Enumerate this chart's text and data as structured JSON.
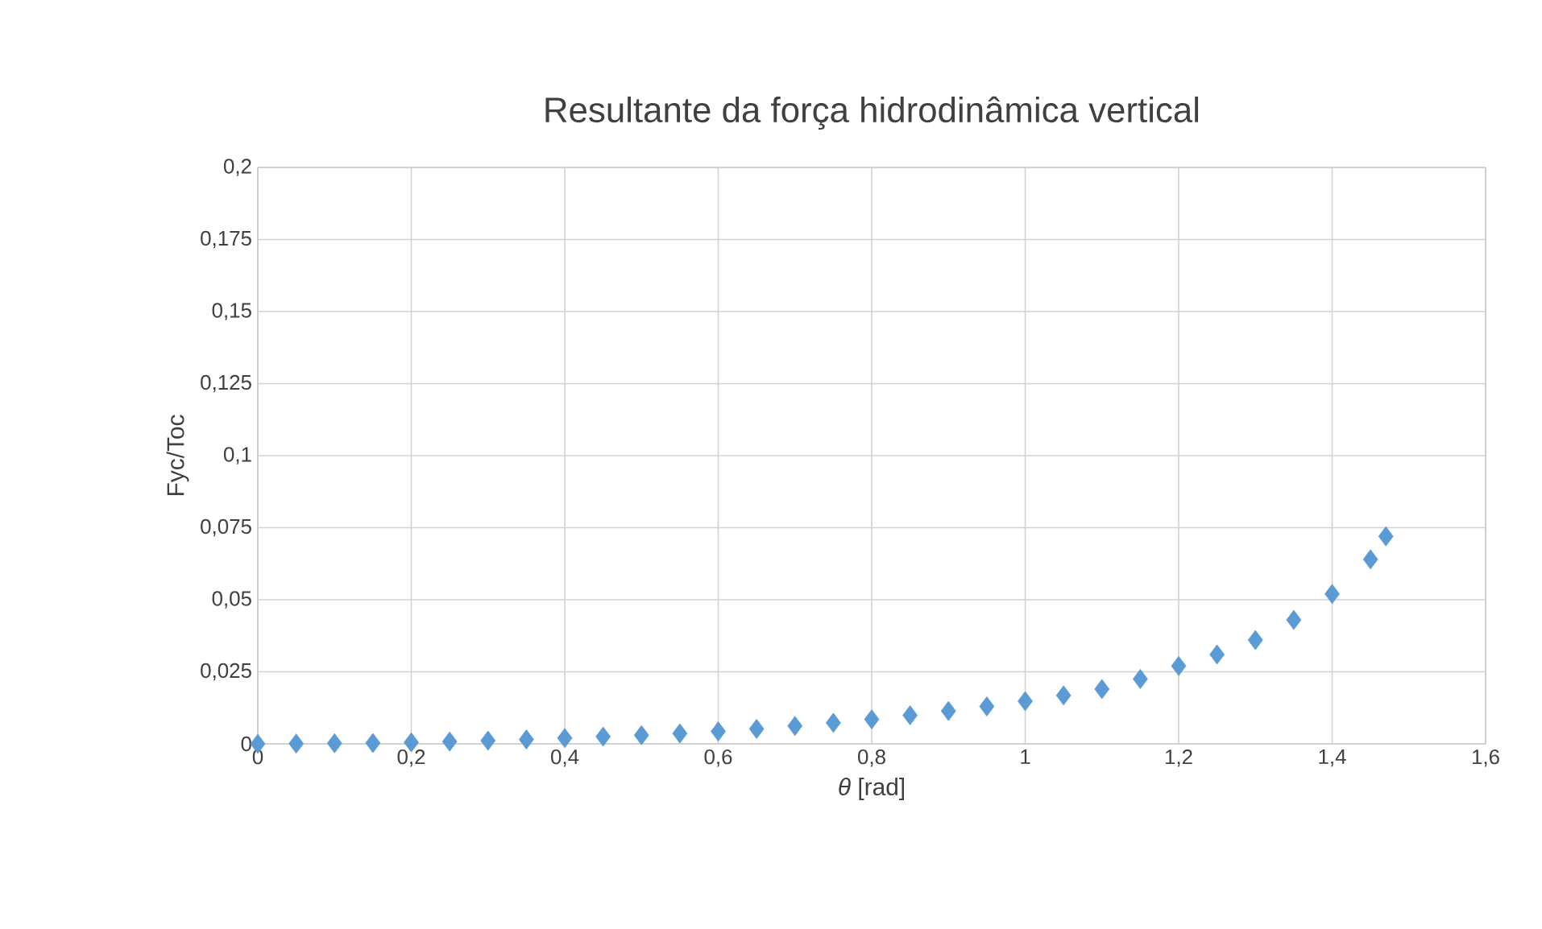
{
  "chart_data": {
    "type": "scatter",
    "title": "Resultante da força hidrodinâmica vertical",
    "xlabel": "*θ* [rad]",
    "ylabel": "Fyc/Toc",
    "x": [
      0,
      0.05,
      0.1,
      0.15,
      0.2,
      0.25,
      0.3,
      0.35,
      0.4,
      0.45,
      0.5,
      0.55,
      0.6,
      0.65,
      0.7,
      0.75,
      0.8,
      0.85,
      0.9,
      0.95,
      1.0,
      1.05,
      1.1,
      1.15,
      1.2,
      1.25,
      1.3,
      1.35,
      1.4,
      1.45,
      1.47
    ],
    "series": [
      {
        "color": "#5b9bd5",
        "values": [
          0,
          0.0001,
          0.0002,
          0.0003,
          0.0005,
          0.0008,
          0.0011,
          0.0015,
          0.002,
          0.0025,
          0.003,
          0.0036,
          0.0043,
          0.0052,
          0.0062,
          0.0073,
          0.0085,
          0.0099,
          0.0114,
          0.013,
          0.0148,
          0.0168,
          0.019,
          0.0225,
          0.027,
          0.031,
          0.036,
          0.043,
          0.052,
          0.064,
          0.072
        ]
      }
    ],
    "xlim": [
      0,
      1.6
    ],
    "ylim": [
      0,
      0.2
    ],
    "xticks": [
      0,
      {
        "value": 0.2,
        "label": "0,2"
      },
      {
        "value": 0.4,
        "label": "0,4"
      },
      {
        "value": 0.6,
        "label": "0,6"
      },
      {
        "value": 0.8,
        "label": "0,8"
      },
      1,
      {
        "value": 1.2,
        "label": "1,2"
      },
      {
        "value": 1.4,
        "label": "1,4"
      },
      {
        "value": 1.6,
        "label": "1,6"
      }
    ],
    "yticks": [
      0,
      {
        "value": 0.025,
        "label": "0,025"
      },
      {
        "value": 0.05,
        "label": "0,05"
      },
      {
        "value": 0.075,
        "label": "0,075"
      },
      {
        "value": 0.1,
        "label": "0,1"
      },
      {
        "value": 0.125,
        "label": "0,125"
      },
      {
        "value": 0.15,
        "label": "0,15"
      },
      {
        "value": 0.175,
        "label": "0,175"
      },
      {
        "value": 0.2,
        "label": "0,2"
      }
    ],
    "grid": true,
    "marker": "diamond"
  }
}
